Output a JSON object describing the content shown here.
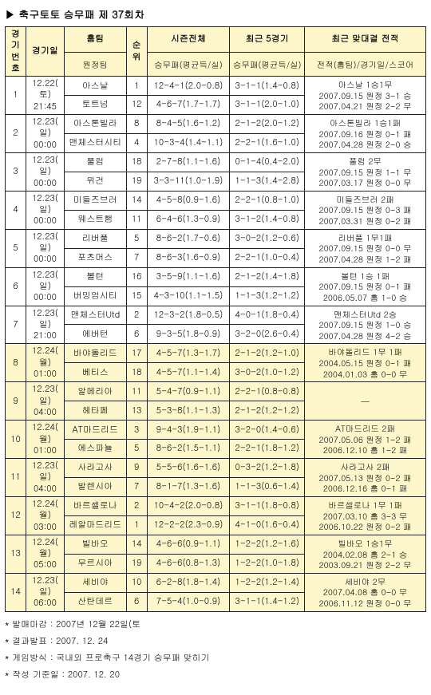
{
  "title": "▶ 축구토토 승무패 제 37회차",
  "header": {
    "matchNo": "경기\n번호",
    "date": "경기일",
    "teams": "홈팀",
    "teams2": "원정팀",
    "rank": "순위",
    "season": "시즌전체",
    "recent5": "최근 5경기",
    "h2h": "최근 맞대결 전적",
    "sub_stat": "승무패(평균득/실)",
    "sub_stat2": "승무패(평균득/실)",
    "sub_h2h": "전적(홈팀)/경기일/스코어"
  },
  "rows": [
    {
      "no": "1",
      "yellow": false,
      "date": "12.22(\n토)\n21:45",
      "home": "아스날",
      "homeR": "1",
      "homeS": "12-4-1(2.0-0.8)",
      "homeR5": "3-1-1(1.4-0.8)",
      "away": "토트넘",
      "awayR": "12",
      "awayS": "4-6-7(1.7-1.7)",
      "awayR5": "3-1-1(2.0-1.0)",
      "h2h": "아스날 1승1무\n2007.09.15 원정 3-1 승\n2007.04.21 원정 2-2 무"
    },
    {
      "no": "2",
      "yellow": false,
      "date": "12.23(\n일)\n00:00",
      "home": "아스톤빌라",
      "homeR": "8",
      "homeS": "8-4-5(1.6-1.2)",
      "homeR5": "2-1-2(2.0-1.2)",
      "away": "맨체스터시티",
      "awayR": "4",
      "awayS": "10-3-4(1.4-1.1)",
      "awayR5": "2-2-1(1.6-1.0)",
      "h2h": "아스톤빌라 1승1패\n2007.09.16 원정 0-1 패\n2007.04.28 원정 2-0 승"
    },
    {
      "no": "3",
      "yellow": false,
      "date": "12.23(\n일)\n00:00",
      "home": "풀럼",
      "homeR": "18",
      "homeS": "2-7-8(1.1-1.6)",
      "homeR5": "0-1-4(0.4-2.0)",
      "away": "위건",
      "awayR": "19",
      "awayS": "3-3-11(1.0-1.9)",
      "awayR5": "1-1-3(1.4-2.8)",
      "h2h": "풀럼 2무\n2007.09.15 원정 1-1 무\n2007.03.17 원정 0-0 무"
    },
    {
      "no": "4",
      "yellow": false,
      "date": "12.23(\n일)\n00:00",
      "home": "미들즈브러",
      "homeR": "14",
      "homeS": "4-5-8(0.9-1.6)",
      "homeR5": "2-2-1(0.8-1.0)",
      "away": "웨스트햄",
      "awayR": "11",
      "awayS": "6-4-6(1.3-0.9)",
      "awayR5": "3-1-2(1.4-0.8)",
      "h2h": "미들즈브러 2패\n2007.09.15 원정 0-3 패\n2007.03.31 원정 0-2 패"
    },
    {
      "no": "5",
      "yellow": false,
      "date": "12.23(\n일)\n00:00",
      "home": "리버풀",
      "homeR": "5",
      "homeS": "8-6-2(1.7-0.6)",
      "homeR5": "3-0-2(1.2-0.6)",
      "away": "포츠머스",
      "awayR": "7",
      "awayS": "8-6-3(1.6-0.9)",
      "awayR5": "2-2-1(1.0-0.4)",
      "h2h": "리버풀 1무1패\n2007.09.15 원정 0-0 무\n2007.04.28 원정 1-2 패"
    },
    {
      "no": "6",
      "yellow": false,
      "date": "12.23(\n일)\n00:00",
      "home": "볼턴",
      "homeR": "16",
      "homeS": "3-5-9(1.1-1.6)",
      "homeR5": "2-1-2(1.4-1.8)",
      "away": "버밍엄시티",
      "awayR": "15",
      "awayS": "4-3-10(1.1-1.5)",
      "awayR5": "1-1-3(1.2-1.2)",
      "h2h": "볼턴 1승 1패\n2007.09.15 원정 0-1 패\n2006.05.07   홈 1-0 승"
    },
    {
      "no": "7",
      "yellow": false,
      "date": "12.23(\n일)\n21:00",
      "home": "맨체스터Utd",
      "homeR": "2",
      "homeS": "12-3-2(1.8-0.5)",
      "homeR5": "4-0-1(1.8-0.4)",
      "away": "에버턴",
      "awayR": "6",
      "awayS": "9-3-5(1.8-0.9)",
      "awayR5": "3-2-0(2.6-0.4)",
      "h2h": "맨체스터Utd 2승\n2007.09.15 원정 1-0 승\n2007.04.28 원정 4-2 승"
    },
    {
      "no": "8",
      "yellow": true,
      "date": "12.24(\n월)\n01:00",
      "home": "바야돌리드",
      "homeR": "17",
      "homeS": "4-5-7(1.3-1.7)",
      "homeR5": "2-1-2(1.2-1.0)",
      "away": "베티스",
      "awayR": "18",
      "awayS": "4-5-7(1.1-1.4)",
      "awayR5": "3-0-2(1.0-1.2)",
      "h2h": "바야돌리드 1무 1패\n2004.05.15 원정  0-1 패\n2004.01.03 홈    0-0 무"
    },
    {
      "no": "9",
      "yellow": true,
      "date": "12.23(\n일)\n04:00",
      "home": "알메리아",
      "homeR": "11",
      "homeS": "5-4-7(0.9-1.1)",
      "homeR5": "2-2-1(0.8-0.8)",
      "away": "헤타페",
      "awayR": "13",
      "awayS": "5-3-8(1.1-1.3)",
      "awayR5": "2-1-2(1.2-1.2)",
      "h2h": "—"
    },
    {
      "no": "10",
      "yellow": true,
      "date": "12.24(\n월)\n01:00",
      "home": "AT마드리드",
      "homeR": "3",
      "homeS": "9-4-3(1.9-1.1)",
      "homeR5": "3-2-0(1.4-0.6)",
      "away": "에스파뇰",
      "awayR": "5",
      "awayS": "8-6-2(1.5-1.1)",
      "awayR5": "2-2-1(1.8-1.2)",
      "h2h": "AT마드리드 2패\n2007.05.06 원정 1-2 패\n2006.12.10 홈   1-2 패"
    },
    {
      "no": "11",
      "yellow": true,
      "date": "12.23(\n일)\n04:00",
      "home": "사라고사",
      "homeR": "9",
      "homeS": "5-5-6(1.6-1.6)",
      "homeR5": "0-3-2(1.2-1.8)",
      "away": "발렌시아",
      "awayR": "7",
      "awayS": "8-1-7(1.3-1.6)",
      "awayR5": "1-1-3(0.6-1.4)",
      "h2h": "사라고사 2패\n2007.05.13 원정 0-2 패\n2006.12.16 홈   0-1 패"
    },
    {
      "no": "12",
      "yellow": true,
      "date": "12.24(\n월)\n03:00",
      "home": "바르셀로나",
      "homeR": "2",
      "homeS": "10-4-2(2.0-0.8)",
      "homeR5": "3-1-1(1.8-0.8)",
      "away": "레알마드리드",
      "awayR": "1",
      "awayS": "12-2-2(2.3-0.9)",
      "awayR5": "4-1-0(1.6-0.4)",
      "h2h": "바르셀로나 1무 1패\n2007.03.10 홈   3-3 무\n2006.10.22 원정 0-2 패"
    },
    {
      "no": "13",
      "yellow": true,
      "date": "12.24(\n월)\n05:00",
      "home": "빌바오",
      "homeR": "14",
      "homeS": "4-6-6(0.9-1.1)",
      "homeR5": "1-2-2(1.2-1.6)",
      "away": "무르시아",
      "awayR": "19",
      "awayS": "4-6-6(0.8-1.3)",
      "awayR5": "1-2-2(1.0-1.8)",
      "h2h": "빌바오 1승1무\n2004.02.08 홈   2-1 승\n2003.09.21 원정 2-2 무"
    },
    {
      "no": "14",
      "yellow": true,
      "date": "12.23(\n일)\n06:00",
      "home": "세비야",
      "homeR": "10",
      "homeS": "6-2-8(1.8-1.4)",
      "homeR5": "1-2-2(1.2-1.4)",
      "away": "산탄데르",
      "awayR": "6",
      "awayS": "7-5-4(1.0-0.9)",
      "awayR5": "3-1-1(1.4-1.2)",
      "h2h": "세비야 2무\n2007.04.08 홈   0-0 무\n2006.11.12 원정 0-0 무"
    }
  ],
  "footer": [
    "* 발매마감 : 2007년 12월 22일(토",
    "* 결과발표 : 2007. 12. 24",
    "* 게임방식 : 국내외 프로축구 14경기 승무패 맞히기",
    "* 작성 기준일 : 2007. 12. 20"
  ]
}
